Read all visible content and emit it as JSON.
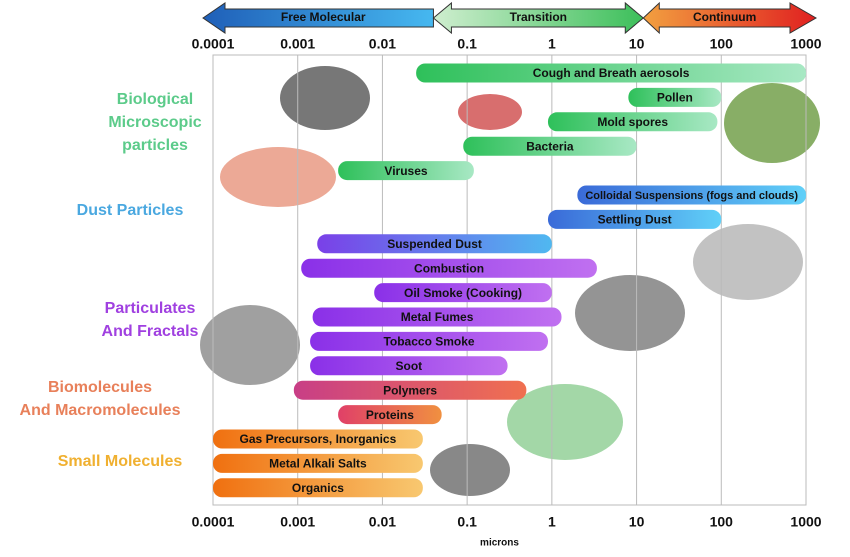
{
  "chart_data": {
    "type": "range",
    "xscale": "log",
    "xlim": [
      0.0001,
      1000
    ],
    "xticks": [
      0.0001,
      0.001,
      0.01,
      0.1,
      1,
      10,
      100,
      1000
    ],
    "grid": true,
    "xlabel": "microns",
    "regimes": [
      {
        "name": "Free Molecular",
        "start": 0.0001,
        "end": 0.04,
        "color": "#1f5fb8",
        "color2": "#46b8f0"
      },
      {
        "name": "Transition",
        "start": 0.04,
        "end": 12,
        "color": "#cfeecf",
        "color2": "#3cbf5a"
      },
      {
        "name": "Continuum",
        "start": 12,
        "end": 1000,
        "color": "#f2a040",
        "color2": "#e02020"
      }
    ],
    "groups": [
      {
        "lines": [
          "Biological",
          "Microscopic",
          "particles"
        ],
        "color": "#5ccb8a"
      },
      {
        "lines": [
          "Dust Particles"
        ],
        "color": "#4aa8e0"
      },
      {
        "lines": [
          "Particulates",
          "And Fractals"
        ],
        "color": "#a040e0"
      },
      {
        "lines": [
          "Biomolecules",
          "And Macromolecules"
        ],
        "color": "#e8805a"
      },
      {
        "lines": [
          "Small Molecules"
        ],
        "color": "#f0b030"
      }
    ],
    "bars": [
      {
        "label": "Cough and Breath aerosols",
        "start": 0.025,
        "end": 1000,
        "color": "#2ec05a",
        "color2": "#a8e8c4"
      },
      {
        "label": "Pollen",
        "start": 8,
        "end": 100,
        "color": "#2ec05a",
        "color2": "#a8e8c4"
      },
      {
        "label": "Mold spores",
        "start": 0.9,
        "end": 90,
        "color": "#2ec05a",
        "color2": "#a8e8c4"
      },
      {
        "label": "Bacteria",
        "start": 0.09,
        "end": 10,
        "color": "#2ec05a",
        "color2": "#a8e8c4"
      },
      {
        "label": "Viruses",
        "start": 0.003,
        "end": 0.12,
        "color": "#2ec05a",
        "color2": "#a8e8c4"
      },
      {
        "label": "Colloidal Suspensions (fogs and clouds)",
        "start": 2,
        "end": 1000,
        "color": "#3a6ad8",
        "color2": "#60d0f8"
      },
      {
        "label": "Settling Dust",
        "start": 0.9,
        "end": 100,
        "color": "#3a6ad8",
        "color2": "#60d0f8"
      },
      {
        "label": "Suspended Dust",
        "start": 0.0017,
        "end": 1,
        "color": "#7a40e8",
        "color2": "#50b8f0"
      },
      {
        "label": "Combustion",
        "start": 0.0011,
        "end": 3.4,
        "color": "#8a30e8",
        "color2": "#c070f0"
      },
      {
        "label": "Oil Smoke (Cooking)",
        "start": 0.008,
        "end": 1,
        "color": "#8a30e8",
        "color2": "#c070f0"
      },
      {
        "label": "Metal Fumes",
        "start": 0.0015,
        "end": 1.3,
        "color": "#8a30e8",
        "color2": "#c070f0"
      },
      {
        "label": "Tobacco Smoke",
        "start": 0.0014,
        "end": 0.9,
        "color": "#8a30e8",
        "color2": "#c070f0"
      },
      {
        "label": "Soot",
        "start": 0.0014,
        "end": 0.3,
        "color": "#8a30e8",
        "color2": "#c070f0"
      },
      {
        "label": "Polymers",
        "start": 0.0009,
        "end": 0.5,
        "color": "#c83e86",
        "color2": "#f07050"
      },
      {
        "label": "Proteins",
        "start": 0.003,
        "end": 0.05,
        "color": "#e04068",
        "color2": "#f09040"
      },
      {
        "label": "Gas Precursors, Inorganics",
        "start": 0.0001,
        "end": 0.03,
        "color": "#f07010",
        "color2": "#f8c870"
      },
      {
        "label": "Metal Alkali Salts",
        "start": 0.0001,
        "end": 0.03,
        "color": "#f07010",
        "color2": "#f8c870"
      },
      {
        "label": "Organics",
        "start": 0.0001,
        "end": 0.03,
        "color": "#f07010",
        "color2": "#f8c870"
      }
    ]
  }
}
